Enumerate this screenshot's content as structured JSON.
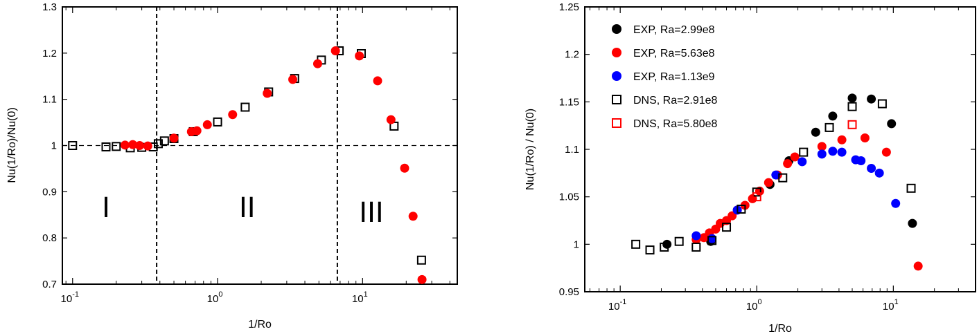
{
  "chart_data": [
    {
      "type": "scatter",
      "xlabel": "1/Ro",
      "ylabel": "Nu(1/Ro)/Nu(0)",
      "xscale": "log",
      "xlim": [
        0.085,
        45
      ],
      "ylim": [
        0.7,
        1.3
      ],
      "xticks": [
        {
          "value": 0.1,
          "label": "10",
          "exp": "-1"
        },
        {
          "value": 1,
          "label": "10",
          "exp": "0"
        },
        {
          "value": 10,
          "label": "10",
          "exp": "1"
        }
      ],
      "yticks": [
        {
          "value": 0.7,
          "label": "0.7"
        },
        {
          "value": 0.8,
          "label": "0.8"
        },
        {
          "value": 0.9,
          "label": "0.9"
        },
        {
          "value": 1.0,
          "label": "1"
        },
        {
          "value": 1.1,
          "label": "1.1"
        },
        {
          "value": 1.2,
          "label": "1.2"
        },
        {
          "value": 1.3,
          "label": "1.3"
        }
      ],
      "reference_line_y": 1.0,
      "region_boundaries_x": [
        0.38,
        6.7
      ],
      "regions": [
        {
          "label": "I",
          "x": 0.17,
          "y": 0.845
        },
        {
          "label": "II",
          "x": 1.6,
          "y": 0.845
        },
        {
          "label": "III",
          "x": 11.5,
          "y": 0.835
        }
      ],
      "series": [
        {
          "marker": "square",
          "color": "#000000",
          "points": [
            [
              0.1,
              1.0
            ],
            [
              0.17,
              0.997
            ],
            [
              0.2,
              0.998
            ],
            [
              0.25,
              0.995
            ],
            [
              0.3,
              0.996
            ],
            [
              0.36,
              0.997
            ],
            [
              0.39,
              1.004
            ],
            [
              0.43,
              1.01
            ],
            [
              0.5,
              1.015
            ],
            [
              0.68,
              1.03
            ],
            [
              1.0,
              1.051
            ],
            [
              1.55,
              1.083
            ],
            [
              2.25,
              1.116
            ],
            [
              3.4,
              1.145
            ],
            [
              5.2,
              1.185
            ],
            [
              6.9,
              1.205
            ],
            [
              9.8,
              1.199
            ],
            [
              16.5,
              1.042
            ],
            [
              25.5,
              0.752
            ]
          ]
        },
        {
          "marker": "circle",
          "color": "#ff0000",
          "points": [
            [
              0.23,
              1.001
            ],
            [
              0.26,
              1.002
            ],
            [
              0.29,
              1.0
            ],
            [
              0.33,
              0.999
            ],
            [
              0.5,
              1.016
            ],
            [
              0.66,
              1.03
            ],
            [
              0.72,
              1.032
            ],
            [
              0.85,
              1.045
            ],
            [
              1.27,
              1.067
            ],
            [
              2.2,
              1.113
            ],
            [
              3.3,
              1.143
            ],
            [
              4.9,
              1.177
            ],
            [
              6.5,
              1.205
            ],
            [
              9.5,
              1.194
            ],
            [
              12.7,
              1.14
            ],
            [
              15.7,
              1.056
            ],
            [
              19.5,
              0.951
            ],
            [
              22.3,
              0.847
            ],
            [
              25.7,
              0.71
            ]
          ]
        }
      ]
    },
    {
      "type": "scatter",
      "xlabel": "1/Ro",
      "ylabel": "Nu(1/Ro) / Nu(0)",
      "xscale": "log",
      "xlim": [
        0.055,
        40
      ],
      "ylim": [
        0.95,
        1.25
      ],
      "xticks": [
        {
          "value": 0.1,
          "label": "10",
          "exp": "-1"
        },
        {
          "value": 1,
          "label": "10",
          "exp": "0"
        },
        {
          "value": 10,
          "label": "10",
          "exp": "1"
        }
      ],
      "yticks": [
        {
          "value": 0.95,
          "label": "0.95"
        },
        {
          "value": 1.0,
          "label": "1"
        },
        {
          "value": 1.05,
          "label": "1.05"
        },
        {
          "value": 1.1,
          "label": "1.1"
        },
        {
          "value": 1.15,
          "label": "1.15"
        },
        {
          "value": 1.2,
          "label": "1.2"
        },
        {
          "value": 1.25,
          "label": "1.25"
        }
      ],
      "legend_position": "top-left",
      "series": [
        {
          "name": "EXP, Ra=2.99e8",
          "marker": "circle",
          "color": "#000000",
          "points": [
            [
              0.22,
              1.0
            ],
            [
              0.46,
              1.003
            ],
            [
              1.25,
              1.063
            ],
            [
              1.72,
              1.088
            ],
            [
              2.7,
              1.118
            ],
            [
              3.6,
              1.135
            ],
            [
              5.0,
              1.154
            ],
            [
              6.9,
              1.153
            ],
            [
              9.7,
              1.127
            ],
            [
              13.8,
              1.022
            ]
          ]
        },
        {
          "name": "EXP, Ra=5.63e8",
          "marker": "circle",
          "color": "#ff0000",
          "points": [
            [
              0.36,
              1.005
            ],
            [
              0.41,
              1.007
            ],
            [
              0.45,
              1.012
            ],
            [
              0.5,
              1.016
            ],
            [
              0.54,
              1.022
            ],
            [
              0.6,
              1.025
            ],
            [
              0.66,
              1.03
            ],
            [
              0.72,
              1.036
            ],
            [
              0.82,
              1.041
            ],
            [
              0.93,
              1.048
            ],
            [
              1.05,
              1.056
            ],
            [
              1.22,
              1.065
            ],
            [
              1.42,
              1.073
            ],
            [
              1.68,
              1.085
            ],
            [
              1.9,
              1.092
            ],
            [
              3.0,
              1.103
            ],
            [
              4.2,
              1.11
            ],
            [
              6.2,
              1.112
            ],
            [
              8.9,
              1.097
            ],
            [
              15.2,
              0.977
            ]
          ]
        },
        {
          "name": "EXP, Ra=1.13e9",
          "marker": "circle",
          "color": "#0000ff",
          "points": [
            [
              0.36,
              1.009
            ],
            [
              0.47,
              1.006
            ],
            [
              0.72,
              1.036
            ],
            [
              1.38,
              1.073
            ],
            [
              2.15,
              1.087
            ],
            [
              3.0,
              1.095
            ],
            [
              3.6,
              1.098
            ],
            [
              4.2,
              1.097
            ],
            [
              5.3,
              1.089
            ],
            [
              5.8,
              1.088
            ],
            [
              6.9,
              1.08
            ],
            [
              7.9,
              1.075
            ],
            [
              10.4,
              1.043
            ]
          ]
        },
        {
          "name": "DNS, Ra=2.91e8",
          "marker": "square",
          "color": "#000000",
          "points": [
            [
              0.13,
              1.0
            ],
            [
              0.165,
              0.994
            ],
            [
              0.21,
              0.997
            ],
            [
              0.27,
              1.003
            ],
            [
              0.36,
              0.997
            ],
            [
              0.47,
              1.004
            ],
            [
              0.6,
              1.018
            ],
            [
              0.77,
              1.037
            ],
            [
              1.0,
              1.055
            ],
            [
              1.55,
              1.07
            ],
            [
              2.2,
              1.097
            ],
            [
              3.4,
              1.123
            ],
            [
              5.0,
              1.145
            ],
            [
              8.3,
              1.148
            ],
            [
              13.5,
              1.059
            ]
          ]
        },
        {
          "name": "DNS, Ra=5.80e8",
          "marker": "square",
          "color": "#ff0000",
          "points": [
            [
              1.0,
              1.05
            ],
            [
              5.0,
              1.126
            ]
          ]
        }
      ]
    }
  ]
}
